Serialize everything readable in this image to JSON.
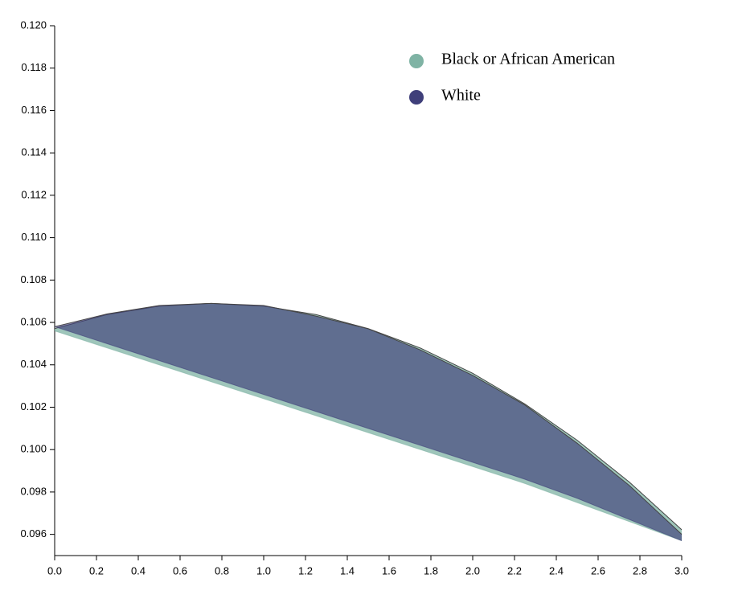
{
  "chart_data": {
    "type": "band",
    "x": [
      0,
      0.25,
      0.5,
      0.75,
      1,
      1.25,
      1.5,
      1.75,
      2,
      2.25,
      2.5,
      2.75,
      3
    ],
    "series": [
      {
        "name": "Black or African American",
        "color": "#7fb3a4",
        "upper": [
          0.10571,
          0.10637,
          0.10677,
          0.1069,
          0.10677,
          0.10637,
          0.10571,
          0.10479,
          0.1036,
          0.10215,
          0.10044,
          0.09846,
          0.09622
        ],
        "lower": [
          0.1056,
          0.1048,
          0.104,
          0.1032,
          0.1024,
          0.1016,
          0.1008,
          0.1,
          0.0992,
          0.0984,
          0.0975,
          0.0966,
          0.0957
        ]
      },
      {
        "name": "White",
        "color": "#3f3f7a",
        "upper": [
          0.1058,
          0.1064,
          0.1068,
          0.1069,
          0.1068,
          0.1063,
          0.1057,
          0.1047,
          0.1035,
          0.1021,
          0.1003,
          0.0983,
          0.096
        ],
        "lower": [
          0.1058,
          0.105,
          0.1042,
          0.1034,
          0.1026,
          0.1018,
          0.101,
          0.1002,
          0.0994,
          0.0986,
          0.0977,
          0.0967,
          0.0957
        ]
      }
    ],
    "xlim": [
      0,
      3
    ],
    "xticks": [
      {
        "value": 0,
        "label": "0.0"
      },
      0.2,
      0.4,
      0.6,
      0.8,
      {
        "value": 1,
        "label": "1.0"
      },
      1.2,
      1.4,
      1.6,
      1.8,
      {
        "value": 2,
        "label": "2.0"
      },
      2.2,
      2.4,
      2.6,
      2.8,
      {
        "value": 3,
        "label": "3.0"
      }
    ],
    "ylim": [
      0.095,
      0.12
    ],
    "yticks": [
      0.096,
      0.098,
      {
        "value": 0.1,
        "label": "0.100"
      },
      0.102,
      0.104,
      0.106,
      0.108,
      {
        "value": 0.11,
        "label": "0.110"
      },
      0.112,
      0.114,
      0.116,
      0.118,
      {
        "value": 0.12,
        "label": "0.120"
      }
    ]
  }
}
